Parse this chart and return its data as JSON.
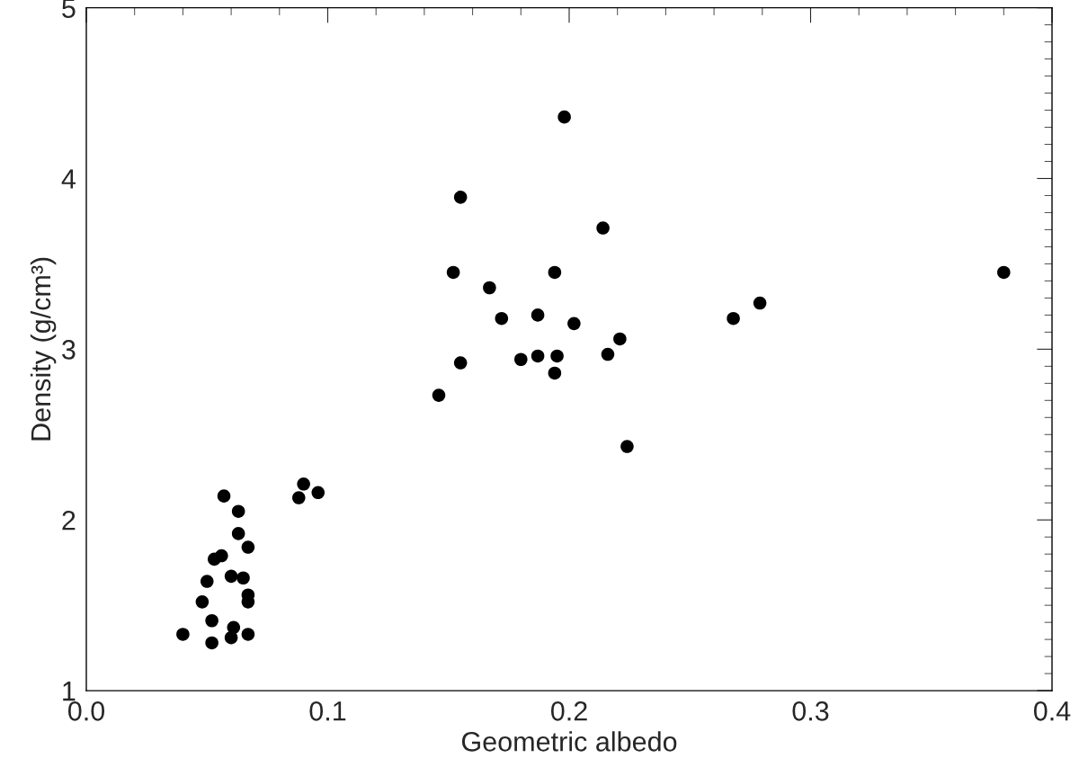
{
  "chart_data": {
    "type": "scatter",
    "xlabel": "Geometric albedo",
    "ylabel": "Density (g/cm³)",
    "x": [
      0.04,
      0.052,
      0.052,
      0.06,
      0.061,
      0.067,
      0.048,
      0.05,
      0.06,
      0.065,
      0.067,
      0.067,
      0.053,
      0.056,
      0.067,
      0.063,
      0.063,
      0.057,
      0.088,
      0.09,
      0.096,
      0.146,
      0.155,
      0.152,
      0.155,
      0.167,
      0.172,
      0.18,
      0.187,
      0.187,
      0.194,
      0.195,
      0.194,
      0.198,
      0.202,
      0.214,
      0.216,
      0.221,
      0.224,
      0.268,
      0.279,
      0.38
    ],
    "series": [
      {
        "color": "#000000",
        "values": [
          1.33,
          1.28,
          1.41,
          1.31,
          1.37,
          1.33,
          1.52,
          1.64,
          1.67,
          1.66,
          1.56,
          1.52,
          1.77,
          1.79,
          1.84,
          1.92,
          2.05,
          2.14,
          2.13,
          2.21,
          2.16,
          2.73,
          2.92,
          3.45,
          3.89,
          3.36,
          3.18,
          2.94,
          2.96,
          3.2,
          3.45,
          2.96,
          2.86,
          4.36,
          3.15,
          3.71,
          2.97,
          3.06,
          2.43,
          3.18,
          3.27,
          3.45
        ]
      }
    ],
    "marker": "circle",
    "grid": false,
    "legend": false,
    "xlim": [
      0.0,
      0.4
    ],
    "xticks": [
      {
        "value": 0.0,
        "label": "0.0"
      },
      0.1,
      0.2,
      0.3,
      0.4
    ],
    "ylim": [
      1,
      5
    ],
    "yticks": [
      1,
      2,
      3,
      4,
      5
    ]
  }
}
